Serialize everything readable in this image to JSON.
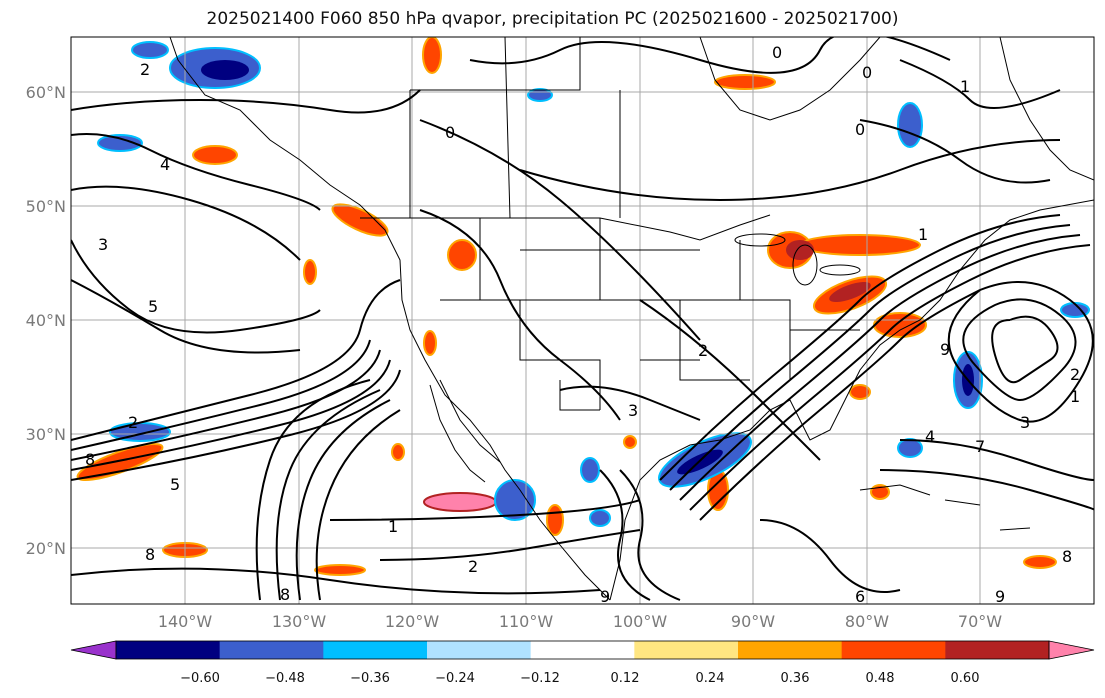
{
  "title": "2025021400 F060 850 hPa qvapor, precipitation PC (2025021600 - 2025021700)",
  "map": {
    "lat_labels": [
      "60°N",
      "50°N",
      "40°N",
      "30°N",
      "20°N"
    ],
    "lon_labels": [
      "140°W",
      "130°W",
      "120°W",
      "110°W",
      "100°W",
      "90°W",
      "80°W",
      "70°W"
    ],
    "contour_labels": [
      "0",
      "1",
      "2",
      "3",
      "4",
      "5",
      "6",
      "7",
      "8",
      "9"
    ]
  },
  "colorbar": {
    "ticks": [
      "−0.60",
      "−0.48",
      "−0.36",
      "−0.24",
      "−0.12",
      "0.12",
      "0.24",
      "0.36",
      "0.48",
      "0.60"
    ],
    "colors": [
      "#9932cc",
      "#000080",
      "#3c5fcd",
      "#00bfff",
      "#b0e2ff",
      "#ffffff",
      "#ffe681",
      "#ffa500",
      "#ff4500",
      "#b22222",
      "#ff82ab"
    ]
  }
}
